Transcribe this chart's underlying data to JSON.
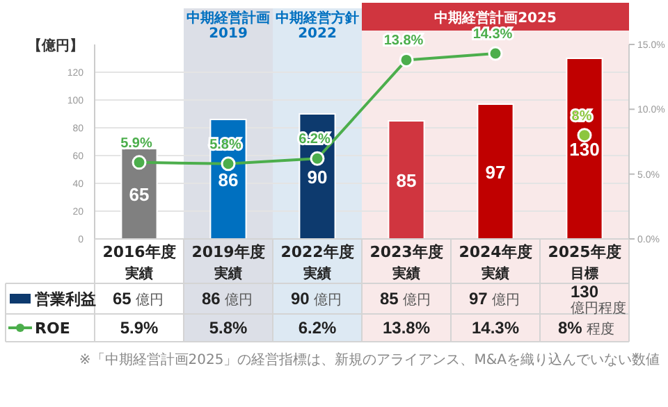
{
  "chart_data": {
    "type": "bar",
    "ylabel": "【億円】",
    "categories": [
      "2016年度実績",
      "2019年度実績",
      "2022年度実績",
      "2023年度実績",
      "2024年度実績",
      "2025年度目標"
    ],
    "series": [
      {
        "name": "営業利益",
        "color": "#0d3a6e",
        "colors": [
          "#808080",
          "#0070c0",
          "#0d3a6e",
          "#d0353f",
          "#c00000",
          "#c00000"
        ],
        "values": [
          65,
          86,
          90,
          85,
          97,
          130
        ]
      },
      {
        "name": "ROE",
        "type": "line",
        "axis": "y2",
        "color": "#4cae4c",
        "marker": "circle",
        "line_style": "solid",
        "values": [
          5.9,
          5.8,
          6.2,
          13.8,
          14.3,
          null
        ],
        "value_labels": [
          "5.9%",
          "5.8%",
          "6.2%",
          "13.8%",
          "14.3%",
          null
        ]
      },
      {
        "type": "scatter",
        "axis": "y2",
        "color": "#8dc63f",
        "marker": "circle",
        "values": [
          null,
          null,
          null,
          null,
          null,
          8
        ],
        "value_labels": [
          null,
          null,
          null,
          null,
          null,
          "8%"
        ]
      }
    ],
    "data_labels": true,
    "ylim": [
      0,
      140
    ],
    "yticks": [
      0,
      20,
      40,
      60,
      80,
      100,
      120
    ],
    "y2lim": [
      0,
      15
    ],
    "y2ticks": [
      {
        "value": 0,
        "label": "0.0%"
      },
      {
        "value": 5,
        "label": "5.0%"
      },
      {
        "value": 10,
        "label": "10.0%"
      },
      {
        "value": 15,
        "label": "15.0%"
      }
    ],
    "grid": "y",
    "legend": "bottom left",
    "bands": [
      {
        "axis": "x",
        "from": "2019年度実績",
        "to": "2019年度実績",
        "label": "中期経営計画2019",
        "color": "#dcdfe7"
      },
      {
        "axis": "x",
        "from": "2022年度実績",
        "to": "2022年度実績",
        "label": "中期経営方針2022",
        "color": "#dde9f3"
      },
      {
        "axis": "x",
        "from": "2023年度実績",
        "to": "2025年度目標",
        "label": "中期経営計画2025",
        "color": "#f9e9e9"
      }
    ],
    "annotations": [
      "65 億円",
      "86 億円",
      "90 億円",
      "85 億円",
      "97 億円",
      "130 億円程度",
      "5.9%",
      "5.8%",
      "6.2%",
      "13.8%",
      "14.3%",
      "8% 程度",
      "※「中期経営計画2025」の経営指標は、新規のアライアンス、M&Aを織り込んでいない数値"
    ]
  }
}
